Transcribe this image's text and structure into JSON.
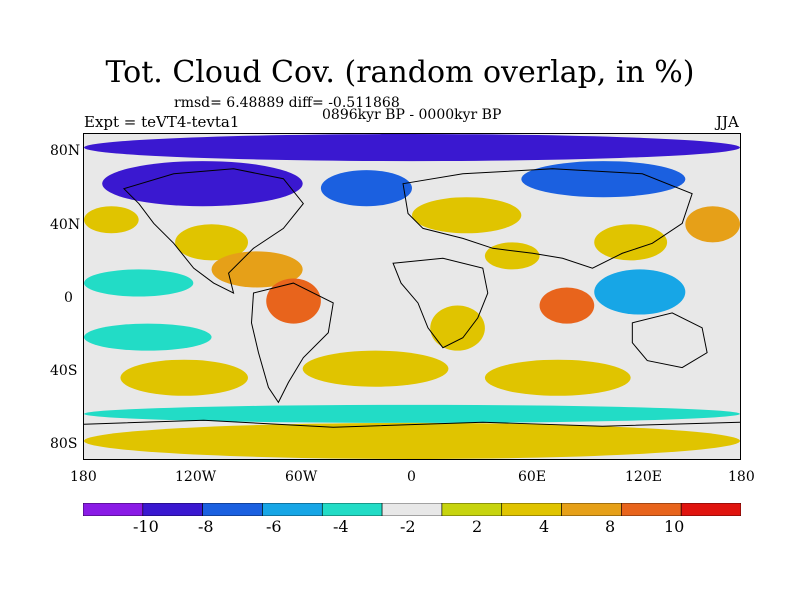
{
  "title": "Tot. Cloud Cov. (random overlap, in %)",
  "stats": "rmsd= 6.48889 diff= -0.511868",
  "period": "0896kyr BP - 0000kyr BP",
  "experiment": "Expt = teVT4-tevta1",
  "season": "JJA",
  "map": {
    "projection": "cylindrical equidistant",
    "lon_range": [
      -180,
      180
    ],
    "lat_range": [
      -90,
      90
    ],
    "lon_ticks": [
      {
        "value": -180,
        "label": "180"
      },
      {
        "value": -120,
        "label": "120W"
      },
      {
        "value": -60,
        "label": "60W"
      },
      {
        "value": 0,
        "label": "0"
      },
      {
        "value": 60,
        "label": "60E"
      },
      {
        "value": 120,
        "label": "120E"
      },
      {
        "value": 180,
        "label": "180"
      }
    ],
    "lat_ticks": [
      {
        "value": 80,
        "label": "80N"
      },
      {
        "value": 40,
        "label": "40N"
      },
      {
        "value": 0,
        "label": "0"
      },
      {
        "value": -40,
        "label": "40S"
      },
      {
        "value": -80,
        "label": "80S"
      }
    ],
    "background_color": "#e8e8e8",
    "regions": [
      {
        "name": "arctic-low",
        "lon": [
          -180,
          180
        ],
        "lat": [
          75,
          90
        ],
        "level": -10
      },
      {
        "name": "n-canada-low",
        "lon": [
          -170,
          -60
        ],
        "lat": [
          50,
          75
        ],
        "level": -10
      },
      {
        "name": "n-atlantic-low",
        "lon": [
          -50,
          0
        ],
        "lat": [
          50,
          70
        ],
        "level": -8
      },
      {
        "name": "siberia-low",
        "lon": [
          60,
          150
        ],
        "lat": [
          55,
          75
        ],
        "level": -8
      },
      {
        "name": "pacific-40n-high",
        "lon": [
          150,
          180
        ],
        "lat": [
          30,
          50
        ],
        "level": 8
      },
      {
        "name": "pacific-north-high",
        "lon": [
          -180,
          -150
        ],
        "lat": [
          35,
          50
        ],
        "level": 6
      },
      {
        "name": "n-america-high",
        "lon": [
          -130,
          -90
        ],
        "lat": [
          20,
          40
        ],
        "level": 6
      },
      {
        "name": "caribbean-high",
        "lon": [
          -110,
          -60
        ],
        "lat": [
          5,
          25
        ],
        "level": 8
      },
      {
        "name": "amazon-high",
        "lon": [
          -80,
          -50
        ],
        "lat": [
          -15,
          10
        ],
        "level": 10
      },
      {
        "name": "tropical-pacific-low",
        "lon": [
          -180,
          -120
        ],
        "lat": [
          0,
          15
        ],
        "level": -4
      },
      {
        "name": "eurasia-high",
        "lon": [
          0,
          60
        ],
        "lat": [
          35,
          55
        ],
        "level": 6
      },
      {
        "name": "arabia-high",
        "lon": [
          40,
          70
        ],
        "lat": [
          15,
          30
        ],
        "level": 4
      },
      {
        "name": "indian-ocean-high",
        "lon": [
          70,
          100
        ],
        "lat": [
          -15,
          5
        ],
        "level": 10
      },
      {
        "name": "s-africa-high",
        "lon": [
          10,
          40
        ],
        "lat": [
          -30,
          -5
        ],
        "level": 6
      },
      {
        "name": "maritime-continent-low",
        "lon": [
          100,
          150
        ],
        "lat": [
          -10,
          15
        ],
        "level": -6
      },
      {
        "name": "china-high",
        "lon": [
          100,
          140
        ],
        "lat": [
          20,
          40
        ],
        "level": 4
      },
      {
        "name": "s-pacific-low",
        "lon": [
          -180,
          -110
        ],
        "lat": [
          -30,
          -15
        ],
        "level": -4
      },
      {
        "name": "s-atlantic-high",
        "lon": [
          -60,
          20
        ],
        "lat": [
          -50,
          -30
        ],
        "level": 4
      },
      {
        "name": "s-indian-high",
        "lon": [
          40,
          120
        ],
        "lat": [
          -55,
          -35
        ],
        "level": 4
      },
      {
        "name": "s-pacific-high",
        "lon": [
          -160,
          -90
        ],
        "lat": [
          -55,
          -35
        ],
        "level": 4
      },
      {
        "name": "southern-ocean-low",
        "lon": [
          -180,
          180
        ],
        "lat": [
          -70,
          -60
        ],
        "level": -4
      },
      {
        "name": "antarctica-mixed",
        "lon": [
          -180,
          180
        ],
        "lat": [
          -90,
          -70
        ],
        "level": 6
      }
    ]
  },
  "colorbar": {
    "colors": [
      "#8a1be6",
      "#3a18d0",
      "#1b60e0",
      "#17a6e6",
      "#22dcc6",
      "#e8e8e8",
      "#c7d40e",
      "#e0c400",
      "#e6a018",
      "#e8641c",
      "#e0140e"
    ],
    "levels": [
      -10,
      -8,
      -6,
      -4,
      -2,
      2,
      4,
      8,
      10
    ],
    "labels": [
      "-10",
      "-8",
      "-6",
      "-4",
      "-2",
      "2",
      "4",
      "8",
      "10"
    ]
  }
}
